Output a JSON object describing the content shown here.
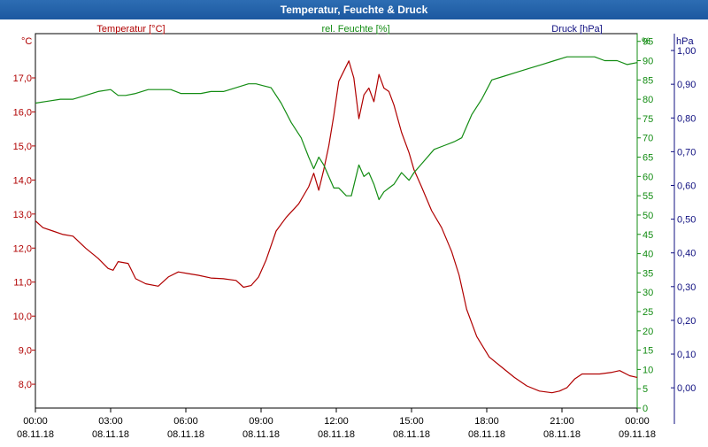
{
  "window": {
    "title": "Temperatur, Feuchte & Druck"
  },
  "colors": {
    "temperature": "#b00000",
    "humidity": "#138c13",
    "pressure": "#101080",
    "grid": "#000000"
  },
  "chart_data": {
    "type": "line",
    "x_tick_labels": [
      {
        "time": "00:00",
        "date": "08.11.18"
      },
      {
        "time": "03:00",
        "date": "08.11.18"
      },
      {
        "time": "06:00",
        "date": "08.11.18"
      },
      {
        "time": "09:00",
        "date": "08.11.18"
      },
      {
        "time": "12:00",
        "date": "08.11.18"
      },
      {
        "time": "15:00",
        "date": "08.11.18"
      },
      {
        "time": "18:00",
        "date": "08.11.18"
      },
      {
        "time": "21:00",
        "date": "08.11.18"
      },
      {
        "time": "00:00",
        "date": "09.11.18"
      }
    ],
    "x_range_hours": [
      0,
      24
    ],
    "axes": {
      "temperature": {
        "label": "Temperatur [°C]",
        "unit": "°C",
        "range": [
          7.3,
          18.3
        ],
        "ticks": [
          "8,0",
          "9,0",
          "10,0",
          "11,0",
          "12,0",
          "13,0",
          "14,0",
          "15,0",
          "16,0",
          "17,0"
        ],
        "tick_values": [
          8,
          9,
          10,
          11,
          12,
          13,
          14,
          15,
          16,
          17
        ]
      },
      "humidity": {
        "label": "rel. Feuchte [%]",
        "unit": "%",
        "range": [
          0,
          97
        ],
        "ticks": [
          "0",
          "5",
          "10",
          "15",
          "20",
          "25",
          "30",
          "35",
          "40",
          "45",
          "50",
          "55",
          "60",
          "65",
          "70",
          "75",
          "80",
          "85",
          "90",
          "95"
        ],
        "tick_values": [
          0,
          5,
          10,
          15,
          20,
          25,
          30,
          35,
          40,
          45,
          50,
          55,
          60,
          65,
          70,
          75,
          80,
          85,
          90,
          95
        ]
      },
      "pressure": {
        "label": "Druck [hPa]",
        "unit": "hPa",
        "range": [
          -0.06,
          1.05
        ],
        "ticks": [
          "0,00",
          "0,10",
          "0,20",
          "0,30",
          "0,40",
          "0,50",
          "0,60",
          "0,70",
          "0,80",
          "0,90",
          "1,00"
        ],
        "tick_values": [
          0,
          0.1,
          0.2,
          0.3,
          0.4,
          0.5,
          0.6,
          0.7,
          0.8,
          0.9,
          1.0
        ]
      }
    },
    "grid": true,
    "series": [
      {
        "name": "Temperatur [°C]",
        "axis": "temperature",
        "x": [
          0,
          0.3,
          0.7,
          1.1,
          1.5,
          2.0,
          2.5,
          2.9,
          3.1,
          3.3,
          3.7,
          4.0,
          4.4,
          4.9,
          5.3,
          5.7,
          6.1,
          6.5,
          7.0,
          7.5,
          8.0,
          8.3,
          8.6,
          8.9,
          9.2,
          9.6,
          10.0,
          10.5,
          10.9,
          11.1,
          11.3,
          11.5,
          11.7,
          11.9,
          12.1,
          12.3,
          12.5,
          12.7,
          12.9,
          13.1,
          13.3,
          13.5,
          13.7,
          13.9,
          14.1,
          14.3,
          14.6,
          14.9,
          15.1,
          15.4,
          15.8,
          16.2,
          16.6,
          16.9,
          17.2,
          17.6,
          18.1,
          18.6,
          19.1,
          19.6,
          20.1,
          20.6,
          20.9,
          21.2,
          21.5,
          21.8,
          22.1,
          22.5,
          23.0,
          23.3,
          23.7,
          24.0
        ],
        "y": [
          12.8,
          12.6,
          12.5,
          12.4,
          12.35,
          12.0,
          11.7,
          11.4,
          11.35,
          11.6,
          11.55,
          11.1,
          10.95,
          10.88,
          11.15,
          11.3,
          11.25,
          11.2,
          11.12,
          11.1,
          11.05,
          10.85,
          10.9,
          11.15,
          11.65,
          12.5,
          12.9,
          13.3,
          13.8,
          14.2,
          13.7,
          14.3,
          15.0,
          15.9,
          16.9,
          17.2,
          17.5,
          17.0,
          15.8,
          16.5,
          16.7,
          16.3,
          17.1,
          16.7,
          16.6,
          16.2,
          15.4,
          14.8,
          14.3,
          13.8,
          13.1,
          12.6,
          11.9,
          11.2,
          10.2,
          9.4,
          8.8,
          8.5,
          8.2,
          7.95,
          7.8,
          7.75,
          7.8,
          7.9,
          8.15,
          8.3,
          8.3,
          8.3,
          8.35,
          8.4,
          8.25,
          8.2
        ]
      },
      {
        "name": "rel. Feuchte [%]",
        "axis": "humidity",
        "x": [
          0,
          0.5,
          1.0,
          1.5,
          2.0,
          2.5,
          3.0,
          3.3,
          3.6,
          4.0,
          4.5,
          5.0,
          5.4,
          5.8,
          6.2,
          6.6,
          7.0,
          7.5,
          8.0,
          8.5,
          8.8,
          9.1,
          9.4,
          9.8,
          10.2,
          10.6,
          10.9,
          11.1,
          11.3,
          11.5,
          11.7,
          11.9,
          12.1,
          12.4,
          12.6,
          12.9,
          13.1,
          13.3,
          13.5,
          13.7,
          13.9,
          14.1,
          14.3,
          14.6,
          14.9,
          15.1,
          15.5,
          15.9,
          16.3,
          16.7,
          17.0,
          17.4,
          17.8,
          18.2,
          18.7,
          19.2,
          19.7,
          20.2,
          20.7,
          21.2,
          21.7,
          22.0,
          22.3,
          22.7,
          23.2,
          23.6,
          24.0
        ],
        "y": [
          79,
          79.5,
          80,
          80,
          81,
          82,
          82.5,
          81,
          81,
          81.5,
          82.5,
          82.5,
          82.5,
          81.5,
          81.5,
          81.5,
          82,
          82,
          83,
          84,
          84,
          83.5,
          83,
          79,
          74,
          70,
          65,
          62,
          65,
          63,
          60,
          57,
          57,
          55,
          55,
          63,
          60,
          61,
          58,
          54,
          56,
          57,
          58,
          61,
          59,
          61,
          64,
          67,
          68,
          69,
          70,
          76,
          80,
          85,
          86,
          87,
          88,
          89,
          90,
          91,
          91,
          91,
          91,
          90,
          90,
          89,
          89.5
        ]
      }
    ]
  }
}
